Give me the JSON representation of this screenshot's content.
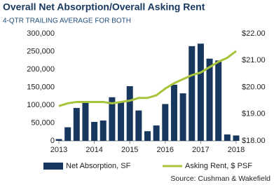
{
  "chart_data": {
    "type": "bar",
    "title": "Overall Net Absorption/Overall Asking Rent",
    "subtitle": "4-QTR TRAILING AVERAGE FOR BOTH",
    "source": "Source: Cushman & Wakefield",
    "x": [
      2013,
      2013.25,
      2013.5,
      2013.75,
      2014,
      2014.25,
      2014.5,
      2014.75,
      2015,
      2015.25,
      2015.5,
      2015.75,
      2016,
      2016.25,
      2016.5,
      2016.75,
      2017,
      2017.25,
      2017.5,
      2017.75,
      2018
    ],
    "xlim": [
      2013,
      2018
    ],
    "xticks": [
      2013,
      2014,
      2015,
      2016,
      2017,
      2018
    ],
    "ylim": [
      0,
      300000
    ],
    "yticks": [
      0,
      {
        "value": 50000,
        "label": "50,000"
      },
      {
        "value": 100000,
        "label": "100,000"
      },
      {
        "value": 150000,
        "label": "150,000"
      },
      {
        "value": 200000,
        "label": "200,000"
      },
      {
        "value": 250000,
        "label": "250,000"
      },
      {
        "value": 300000,
        "label": "300,000"
      }
    ],
    "y2lim": [
      18,
      22
    ],
    "y2ticks": [
      {
        "value": 18,
        "label": "$18.00"
      },
      {
        "value": 19,
        "label": "$19.00"
      },
      {
        "value": 20,
        "label": "$20.00"
      },
      {
        "value": 21,
        "label": "$21.00"
      },
      {
        "value": 22,
        "label": "$22.00"
      }
    ],
    "series": [
      {
        "name": "Net Absorption, SF",
        "type": "bar",
        "color": "#17375e",
        "values": [
          5000,
          38000,
          92000,
          110000,
          53000,
          57000,
          122000,
          108000,
          153000,
          85000,
          27000,
          43000,
          103000,
          157000,
          133000,
          265000,
          272000,
          230000,
          225000,
          18000,
          15000
        ]
      },
      {
        "name": "Asking Rent, $ PSF",
        "type": "line",
        "axis": "y2",
        "color": "#a8c43c",
        "values": [
          19.3,
          19.4,
          19.45,
          19.45,
          19.45,
          19.45,
          19.4,
          19.45,
          19.5,
          19.6,
          19.6,
          19.7,
          19.95,
          20.15,
          20.3,
          20.45,
          20.55,
          20.75,
          20.95,
          21.1,
          21.35
        ]
      }
    ],
    "legend": "bottom"
  }
}
